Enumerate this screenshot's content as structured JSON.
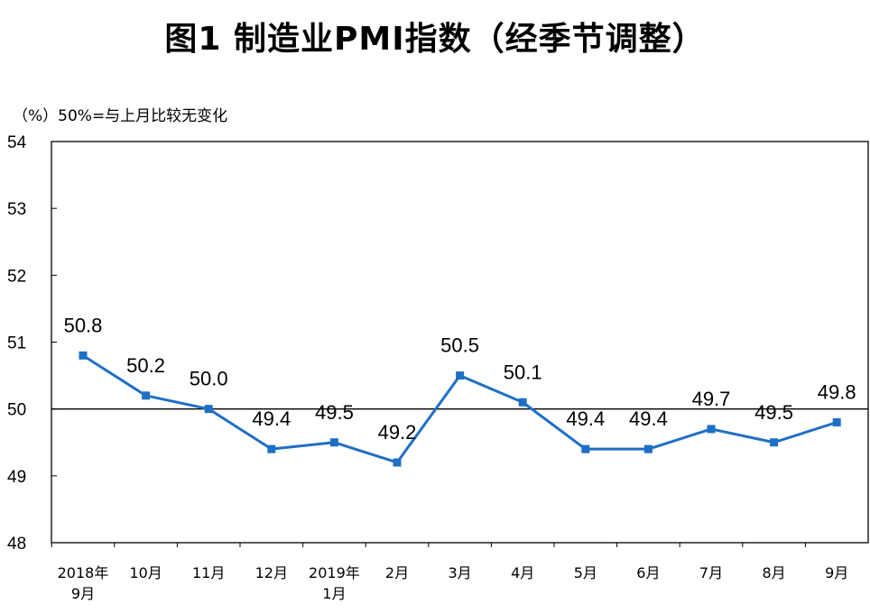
{
  "chart_data": {
    "type": "line",
    "title": "图1 制造业PMI指数（经季节调整）",
    "unit_note": "（%）50%=与上月比较无变化",
    "categories": [
      [
        "2018年",
        "9月"
      ],
      [
        "10月"
      ],
      [
        "11月"
      ],
      [
        "12月"
      ],
      [
        "2019年",
        "1月"
      ],
      [
        "2月"
      ],
      [
        "3月"
      ],
      [
        "4月"
      ],
      [
        "5月"
      ],
      [
        "6月"
      ],
      [
        "7月"
      ],
      [
        "8月"
      ],
      [
        "9月"
      ]
    ],
    "values": [
      50.8,
      50.2,
      50.0,
      49.4,
      49.5,
      49.2,
      50.5,
      50.1,
      49.4,
      49.4,
      49.7,
      49.5,
      49.8
    ],
    "data_labels": [
      "50.8",
      "50.2",
      "50.0",
      "49.4",
      "49.5",
      "49.2",
      "50.5",
      "50.1",
      "49.4",
      "49.4",
      "49.7",
      "49.5",
      "49.8"
    ],
    "y_ticks": [
      "54",
      "53",
      "52",
      "51",
      "50",
      "49",
      "48"
    ],
    "ylim": [
      48,
      54
    ],
    "reference_line": 50,
    "grid": false,
    "series_color": "#1f6fc5"
  }
}
